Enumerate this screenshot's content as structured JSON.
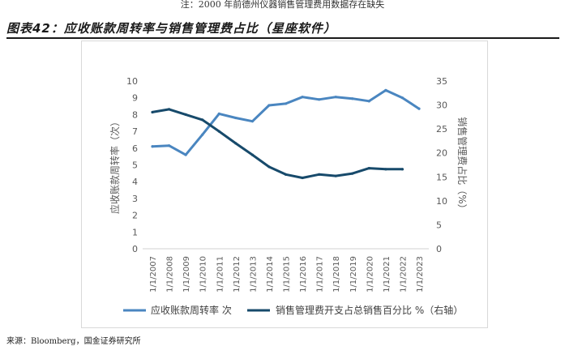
{
  "header_note": "注：2000 年前德州仪器销售管理费用数据存在缺失",
  "figure_title": "图表42：应收账款周转率与销售管理费占比（星座软件）",
  "source_note": "来源：Bloomberg，国金证券研究所",
  "chart_data": {
    "type": "line",
    "title": "图表42：应收账款周转率与销售管理费占比（星座软件）",
    "categories": [
      "1/1/2007",
      "1/1/2008",
      "1/1/2009",
      "1/1/2010",
      "1/1/2011",
      "1/1/2012",
      "1/1/2013",
      "1/1/2014",
      "1/1/2015",
      "1/1/2016",
      "1/1/2017",
      "1/1/2018",
      "1/1/2019",
      "1/1/2020",
      "1/1/2021",
      "1/1/2022",
      "1/1/2023"
    ],
    "ylabel_left": "应收账款周转率（次）",
    "ylabel_right": "销售管理费占比（%）",
    "ylim_left": [
      0,
      10
    ],
    "ylim_right": [
      0,
      35
    ],
    "yticks_left": [
      "0",
      "1",
      "2",
      "3",
      "4",
      "5",
      "6",
      "7",
      "8",
      "9",
      "10"
    ],
    "yticks_right": [
      "0",
      "5",
      "10",
      "15",
      "20",
      "25",
      "30",
      "35"
    ],
    "grid": false,
    "legend_position": "bottom",
    "series": [
      {
        "name": "应收账款周转率 次",
        "axis": "left",
        "color": "#4a86c0",
        "values": [
          6.1,
          6.15,
          5.6,
          6.8,
          8.05,
          7.8,
          7.6,
          8.55,
          8.65,
          9.05,
          8.9,
          9.05,
          8.95,
          8.8,
          9.45,
          9.0,
          8.35
        ]
      },
      {
        "name": "销售管理费开支占总销售百分比 %（右轴）",
        "axis": "right",
        "color": "#174a6b",
        "values": [
          28.5,
          29.1,
          28.0,
          26.9,
          24.5,
          22.0,
          19.6,
          17.1,
          15.5,
          14.8,
          15.5,
          15.2,
          15.7,
          16.8,
          16.6,
          16.6,
          null
        ]
      }
    ]
  }
}
